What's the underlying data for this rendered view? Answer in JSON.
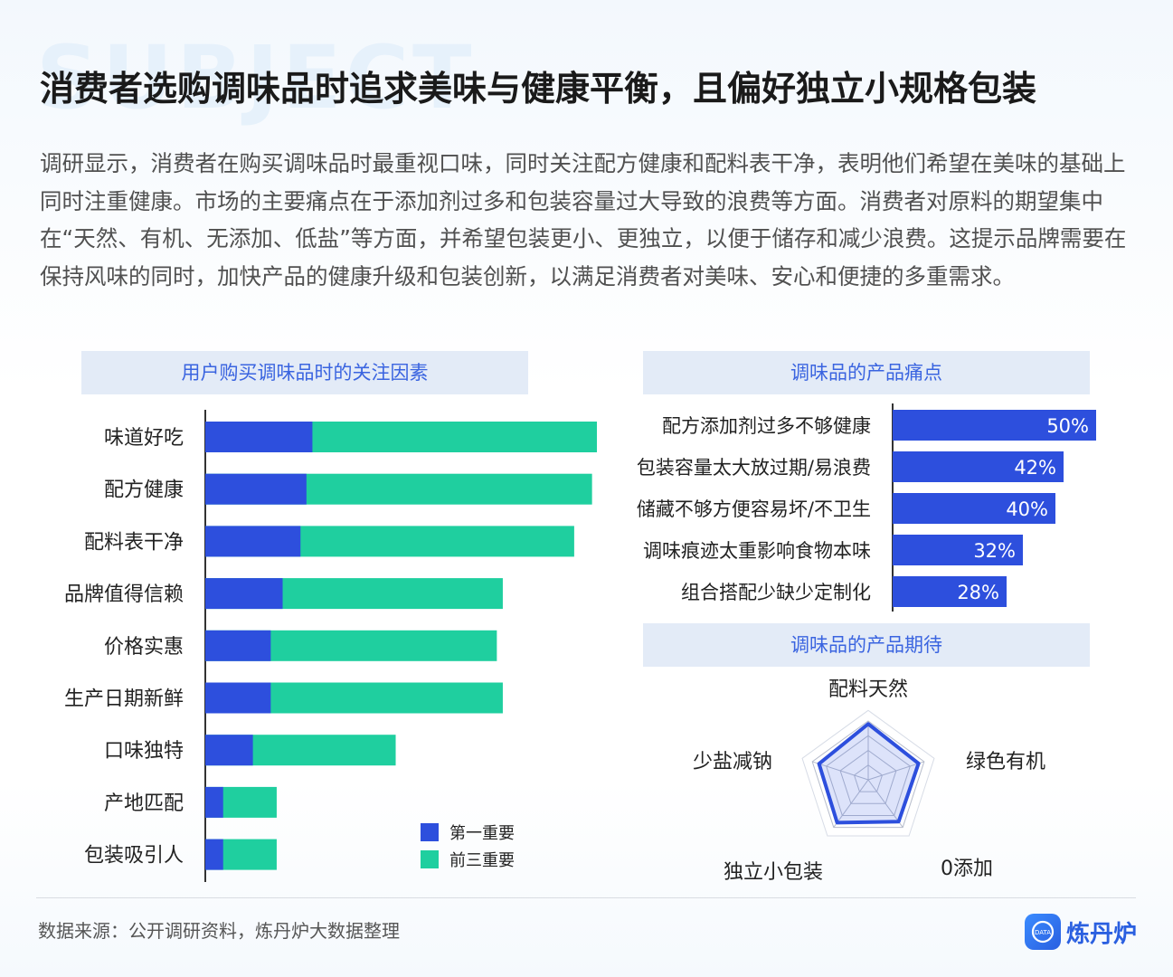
{
  "watermark": "SUBJECT",
  "title": "消费者选购调味品时追求美味与健康平衡，且偏好独立小规格包装",
  "intro": "调研显示，消费者在购买调味品时最重视口味，同时关注配方健康和配料表干净，表明他们希望在美味的基础上同时注重健康。市场的主要痛点在于添加剂过多和包装容量过大导致的浪费等方面。消费者对原料的期望集中在“天然、有机、无添加、低盐”等方面，并希望包装更小、更独立，以便于储存和减少浪费。这提示品牌需要在保持风味的同时，加快产品的健康升级和包装创新，以满足消费者对美味、安心和便捷的多重需求。",
  "colors": {
    "first": "#2d4fdd",
    "top3": "#1fcf9f",
    "pain_bar": "#2d4fdd",
    "radar": "#2d4fdd",
    "header_bg": "#e3ebf7",
    "header_text": "#3a64e0"
  },
  "chart_data": [
    {
      "type": "bar",
      "orientation": "horizontal",
      "stacked": true,
      "title": "用户购买调味品时的关注因素",
      "categories": [
        "味道好吃",
        "配方健康",
        "配料表干净",
        "品牌值得信赖",
        "价格实惠",
        "生产日期新鲜",
        "口味独特",
        "产地匹配",
        "包装吸引人"
      ],
      "series": [
        {
          "name": "第一重要",
          "values": [
            18,
            17,
            16,
            13,
            11,
            11,
            8,
            3,
            3
          ]
        },
        {
          "name": "前三重要",
          "values": [
            52,
            48,
            46,
            37,
            38,
            39,
            24,
            9,
            9
          ]
        }
      ],
      "xlim": [
        0,
        76
      ],
      "legend": "bottom-right"
    },
    {
      "type": "bar",
      "orientation": "horizontal",
      "title": "调味品的产品痛点",
      "categories": [
        "配方添加剂过多不够健康",
        "包装容量太大放过期/易浪费",
        "储藏不够方便容易坏/不卫生",
        "调味痕迹太重影响食物本味",
        "组合搭配少缺少定制化"
      ],
      "values": [
        50,
        42,
        40,
        32,
        28
      ],
      "labels": [
        "50%",
        "42%",
        "40%",
        "32%",
        "28%"
      ],
      "xlim": [
        0,
        60
      ]
    },
    {
      "type": "radar",
      "title": "调味品的产品期待",
      "categories": [
        "配料天然",
        "绿色有机",
        "0添加",
        "独立小包装",
        "少盐减钠"
      ],
      "values": [
        0.95,
        0.9,
        0.88,
        0.9,
        0.88
      ],
      "rings": 4
    }
  ],
  "footer": {
    "source": "数据来源：公开调研资料，炼丹炉大数据整理",
    "brand": "炼丹炉",
    "brand_icon_text": "DATA"
  }
}
